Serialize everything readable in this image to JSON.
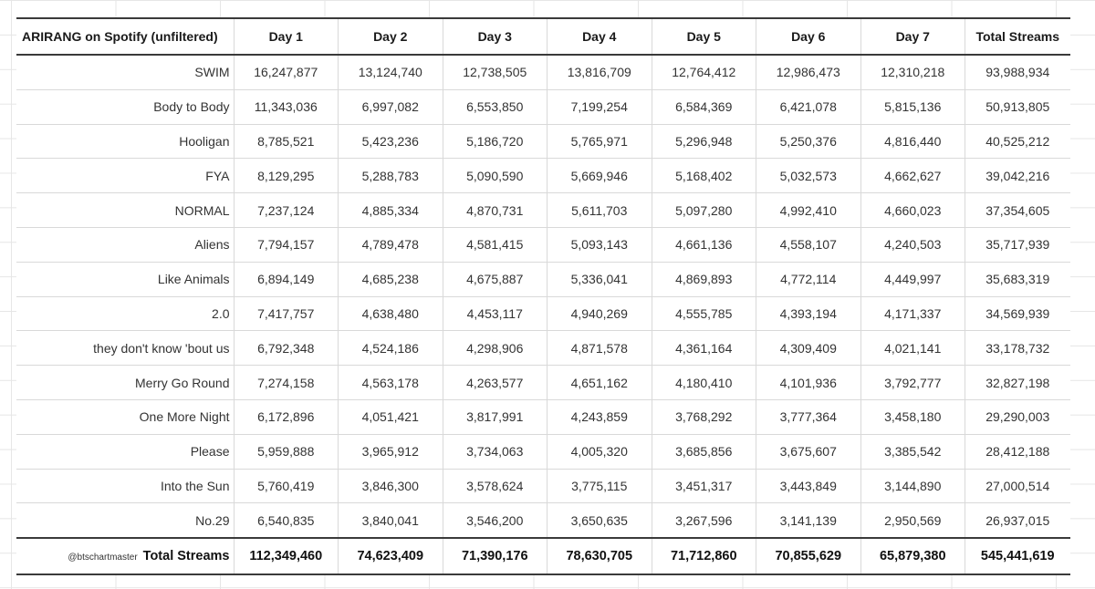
{
  "table": {
    "title": "ARIRANG on Spotify (unfiltered)",
    "columns": [
      "Day 1",
      "Day 2",
      "Day 3",
      "Day 4",
      "Day 5",
      "Day 6",
      "Day 7",
      "Total Streams"
    ],
    "rows": [
      {
        "song": "SWIM",
        "values": [
          "16,247,877",
          "13,124,740",
          "12,738,505",
          "13,816,709",
          "12,764,412",
          "12,986,473",
          "12,310,218",
          "93,988,934"
        ]
      },
      {
        "song": "Body to Body",
        "values": [
          "11,343,036",
          "6,997,082",
          "6,553,850",
          "7,199,254",
          "6,584,369",
          "6,421,078",
          "5,815,136",
          "50,913,805"
        ]
      },
      {
        "song": "Hooligan",
        "values": [
          "8,785,521",
          "5,423,236",
          "5,186,720",
          "5,765,971",
          "5,296,948",
          "5,250,376",
          "4,816,440",
          "40,525,212"
        ]
      },
      {
        "song": "FYA",
        "values": [
          "8,129,295",
          "5,288,783",
          "5,090,590",
          "5,669,946",
          "5,168,402",
          "5,032,573",
          "4,662,627",
          "39,042,216"
        ]
      },
      {
        "song": "NORMAL",
        "values": [
          "7,237,124",
          "4,885,334",
          "4,870,731",
          "5,611,703",
          "5,097,280",
          "4,992,410",
          "4,660,023",
          "37,354,605"
        ]
      },
      {
        "song": "Aliens",
        "values": [
          "7,794,157",
          "4,789,478",
          "4,581,415",
          "5,093,143",
          "4,661,136",
          "4,558,107",
          "4,240,503",
          "35,717,939"
        ]
      },
      {
        "song": "Like Animals",
        "values": [
          "6,894,149",
          "4,685,238",
          "4,675,887",
          "5,336,041",
          "4,869,893",
          "4,772,114",
          "4,449,997",
          "35,683,319"
        ]
      },
      {
        "song": "2.0",
        "values": [
          "7,417,757",
          "4,638,480",
          "4,453,117",
          "4,940,269",
          "4,555,785",
          "4,393,194",
          "4,171,337",
          "34,569,939"
        ]
      },
      {
        "song": "they don't know 'bout us",
        "values": [
          "6,792,348",
          "4,524,186",
          "4,298,906",
          "4,871,578",
          "4,361,164",
          "4,309,409",
          "4,021,141",
          "33,178,732"
        ]
      },
      {
        "song": "Merry Go Round",
        "values": [
          "7,274,158",
          "4,563,178",
          "4,263,577",
          "4,651,162",
          "4,180,410",
          "4,101,936",
          "3,792,777",
          "32,827,198"
        ]
      },
      {
        "song": "One More Night",
        "values": [
          "6,172,896",
          "4,051,421",
          "3,817,991",
          "4,243,859",
          "3,768,292",
          "3,777,364",
          "3,458,180",
          "29,290,003"
        ]
      },
      {
        "song": "Please",
        "values": [
          "5,959,888",
          "3,965,912",
          "3,734,063",
          "4,005,320",
          "3,685,856",
          "3,675,607",
          "3,385,542",
          "28,412,188"
        ]
      },
      {
        "song": "Into the Sun",
        "values": [
          "5,760,419",
          "3,846,300",
          "3,578,624",
          "3,775,115",
          "3,451,317",
          "3,443,849",
          "3,144,890",
          "27,000,514"
        ]
      },
      {
        "song": "No.29",
        "values": [
          "6,540,835",
          "3,840,041",
          "3,546,200",
          "3,650,635",
          "3,267,596",
          "3,141,139",
          "2,950,569",
          "26,937,015"
        ]
      }
    ],
    "footer": {
      "watermark": "@btschartmaster",
      "label": "Total Streams",
      "values": [
        "112,349,460",
        "74,623,409",
        "71,390,176",
        "78,630,705",
        "71,712,860",
        "70,855,629",
        "65,879,380",
        "545,441,619"
      ]
    }
  }
}
